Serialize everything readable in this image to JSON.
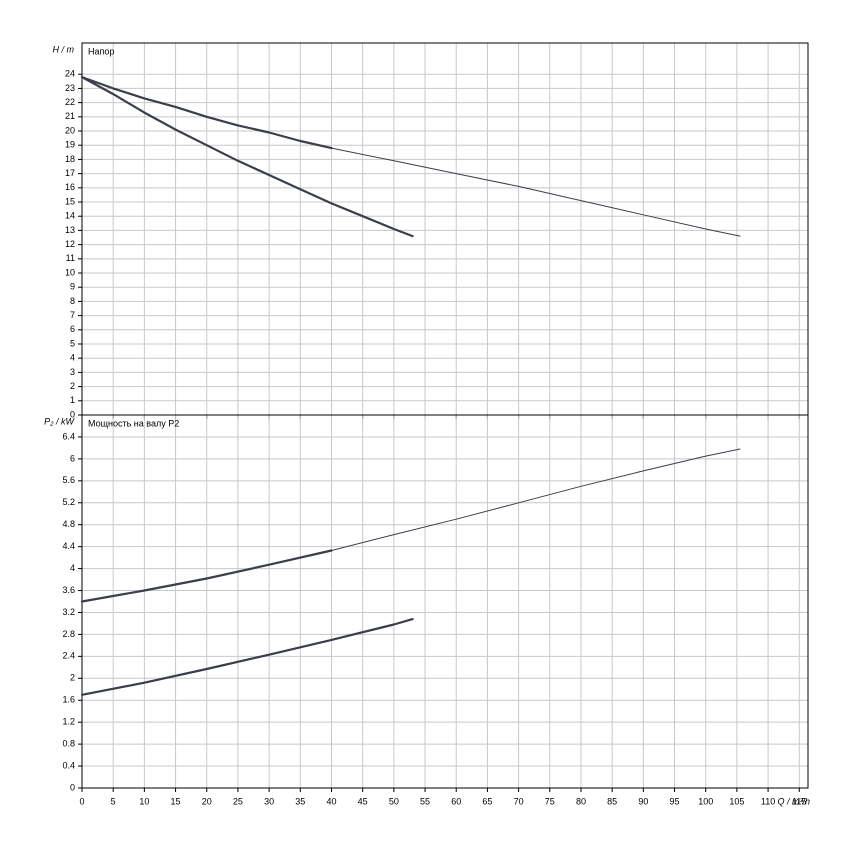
{
  "chart_data": [
    {
      "type": "line",
      "ylabel": "H / m",
      "title": "Напор",
      "xlim": [
        0,
        116.4
      ],
      "ylim": [
        0,
        26.2
      ],
      "xticks": [
        0,
        5,
        10,
        15,
        20,
        25,
        30,
        35,
        40,
        45,
        50,
        55,
        60,
        65,
        70,
        75,
        80,
        85,
        90,
        95,
        100,
        105,
        110,
        115
      ],
      "yticks": [
        0,
        1,
        2,
        3,
        4,
        5,
        6,
        7,
        8,
        9,
        10,
        11,
        12,
        13,
        14,
        15,
        16,
        17,
        18,
        19,
        20,
        21,
        22,
        23,
        24
      ],
      "grid": true,
      "show_xtick_labels": false,
      "series": [
        {
          "color": "#3a3f4a",
          "width": 2.2,
          "x": [
            0,
            5,
            10,
            15,
            20,
            25,
            30,
            35,
            40
          ],
          "values": [
            23.8,
            23.0,
            22.3,
            21.7,
            21.0,
            20.4,
            19.9,
            19.3,
            18.8
          ]
        },
        {
          "color": "#3a3f4a",
          "width": 1,
          "x": [
            40,
            50,
            60,
            70,
            80,
            90,
            100,
            105.5
          ],
          "values": [
            18.8,
            17.9,
            17.0,
            16.1,
            15.1,
            14.1,
            13.1,
            12.6
          ]
        },
        {
          "color": "#3a3f4a",
          "width": 2.2,
          "x": [
            0,
            5,
            10,
            15,
            20,
            25,
            30,
            35,
            40,
            45,
            50,
            53
          ],
          "values": [
            23.8,
            22.6,
            21.3,
            20.1,
            19.0,
            17.9,
            16.9,
            15.9,
            14.9,
            14.0,
            13.1,
            12.6
          ]
        }
      ]
    },
    {
      "type": "line",
      "ylabel": "P₂ / kW",
      "title": "Мощность на валу P2",
      "xlabel": "Q / m³/h",
      "xlim": [
        0,
        116.4
      ],
      "ylim": [
        0,
        6.8
      ],
      "xticks": [
        0,
        5,
        10,
        15,
        20,
        25,
        30,
        35,
        40,
        45,
        50,
        55,
        60,
        65,
        70,
        75,
        80,
        85,
        90,
        95,
        100,
        105,
        110,
        115
      ],
      "yticks": [
        0,
        0.4,
        0.8,
        1.2,
        1.6,
        2,
        2.4,
        2.8,
        3.2,
        3.6,
        4,
        4.4,
        4.8,
        5.2,
        5.6,
        6,
        6.4
      ],
      "grid": true,
      "show_xtick_labels": true,
      "series": [
        {
          "color": "#3a3f4a",
          "width": 2.2,
          "x": [
            0,
            10,
            20,
            30,
            40
          ],
          "values": [
            3.4,
            3.6,
            3.82,
            4.07,
            4.33
          ]
        },
        {
          "color": "#3a3f4a",
          "width": 1,
          "x": [
            40,
            50,
            60,
            70,
            80,
            90,
            100,
            105.5
          ],
          "values": [
            4.33,
            4.62,
            4.9,
            5.2,
            5.5,
            5.78,
            6.05,
            6.18
          ]
        },
        {
          "color": "#3a3f4a",
          "width": 2.2,
          "x": [
            0,
            10,
            20,
            30,
            40,
            50,
            53
          ],
          "values": [
            1.7,
            1.92,
            2.17,
            2.43,
            2.7,
            2.98,
            3.08
          ]
        }
      ]
    }
  ]
}
